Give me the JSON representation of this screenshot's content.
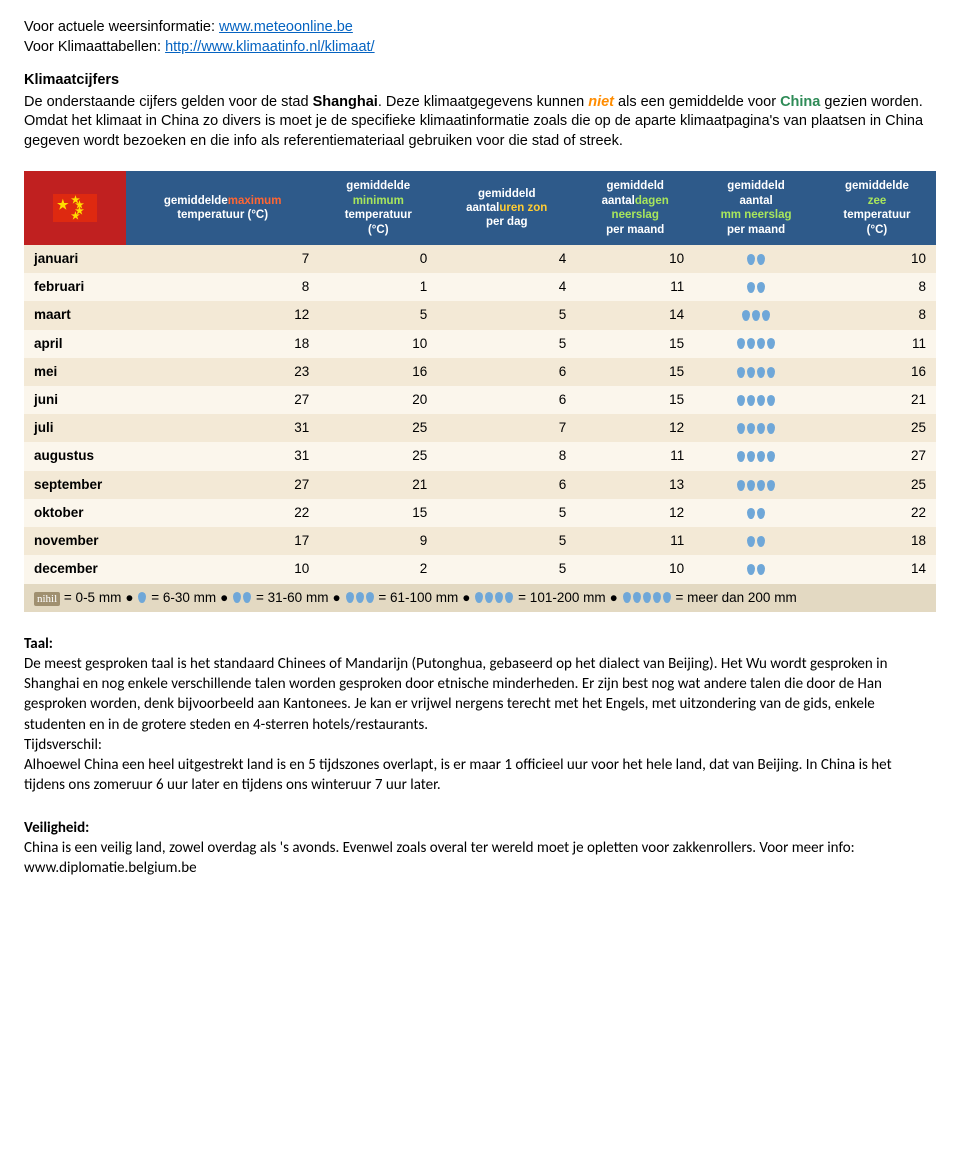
{
  "intro": {
    "weather_line_prefix": "Voor actuele weersinformatie: ",
    "weather_link": "www.meteoonline.be",
    "tables_line_prefix": "Voor Klimaattabellen: ",
    "tables_link": "http://www.klimaatinfo.nl/klimaat/"
  },
  "klimaatcijfers": {
    "title": "Klimaatcijfers",
    "line1_pre": "De onderstaande cijfers gelden voor de stad ",
    "city": "Shanghai",
    "line1_post": ". Deze klimaatgegevens kunnen ",
    "niet": "niet",
    "line2_mid": " als een gemiddelde voor ",
    "china": "China",
    "line2_post": " gezien worden. Omdat het klimaat in China zo divers is moet je de specifieke klimaatinformatie zoals die op de aparte klimaatpagina's van plaatsen in China gegeven wordt bezoeken en die info als referentiemateriaal gebruiken voor die stad of streek."
  },
  "table": {
    "headers": {
      "max_temp_a": "gemiddelde",
      "max_temp_b": "maximum",
      "max_temp_c": "temperatuur (°C)",
      "min_temp_a": "gemiddelde",
      "min_temp_b": "minimum",
      "min_temp_c": "temperatuur",
      "min_temp_d": "(°C)",
      "sun_a": "gemiddeld",
      "sun_b": "aantal",
      "sun_c": "uren zon",
      "sun_d": "per dag",
      "days_a": "gemiddeld",
      "days_b": "aantal",
      "days_c": "dagen",
      "days_d": "neerslag",
      "days_e": "per maand",
      "mm_a": "gemiddeld",
      "mm_b": "aantal",
      "mm_c": "mm neerslag",
      "mm_d": "per maand",
      "sea_a": "gemiddelde",
      "sea_b": "zee",
      "sea_c": "temperatuur",
      "sea_d": "(°C)"
    },
    "rows": [
      {
        "month": "januari",
        "max": "7",
        "min": "0",
        "sun": "4",
        "days": "10",
        "drops": 2,
        "sea": "10"
      },
      {
        "month": "februari",
        "max": "8",
        "min": "1",
        "sun": "4",
        "days": "11",
        "drops": 2,
        "sea": "8"
      },
      {
        "month": "maart",
        "max": "12",
        "min": "5",
        "sun": "5",
        "days": "14",
        "drops": 3,
        "sea": "8"
      },
      {
        "month": "april",
        "max": "18",
        "min": "10",
        "sun": "5",
        "days": "15",
        "drops": 4,
        "sea": "11"
      },
      {
        "month": "mei",
        "max": "23",
        "min": "16",
        "sun": "6",
        "days": "15",
        "drops": 4,
        "sea": "16"
      },
      {
        "month": "juni",
        "max": "27",
        "min": "20",
        "sun": "6",
        "days": "15",
        "drops": 4,
        "sea": "21"
      },
      {
        "month": "juli",
        "max": "31",
        "min": "25",
        "sun": "7",
        "days": "12",
        "drops": 4,
        "sea": "25"
      },
      {
        "month": "augustus",
        "max": "31",
        "min": "25",
        "sun": "8",
        "days": "11",
        "drops": 4,
        "sea": "27"
      },
      {
        "month": "september",
        "max": "27",
        "min": "21",
        "sun": "6",
        "days": "13",
        "drops": 4,
        "sea": "25"
      },
      {
        "month": "oktober",
        "max": "22",
        "min": "15",
        "sun": "5",
        "days": "12",
        "drops": 2,
        "sea": "22"
      },
      {
        "month": "november",
        "max": "17",
        "min": "9",
        "sun": "5",
        "days": "11",
        "drops": 2,
        "sea": "18"
      },
      {
        "month": "december",
        "max": "10",
        "min": "2",
        "sun": "5",
        "days": "10",
        "drops": 2,
        "sea": "14"
      }
    ],
    "legend": {
      "nihil": "nihil",
      "l0": " = 0-5 mm",
      "l1": " = 6-30 mm",
      "l2": " = 31-60 mm",
      "l3": " = 61-100 mm",
      "l4": " = 101-200 mm",
      "l5": " = meer dan 200 mm"
    }
  },
  "taal": {
    "title": "Taal:",
    "body": "De meest gesproken taal is het standaard Chinees of Mandarijn (Putonghua, gebaseerd op het dialect van Beijing). Het Wu wordt gesproken in Shanghai en nog enkele verschillende talen worden gesproken door etnische minderheden. Er zijn best nog wat andere talen die door de Han gesproken worden, denk bijvoorbeeld aan Kantonees. Je kan er vrijwel nergens terecht met het Engels, met uitzondering van de gids, enkele studenten en in de grotere steden en 4-sterren hotels/restaurants.",
    "tijd_title": "Tijdsverschil:",
    "tijd_body": "Alhoewel China een heel uitgestrekt land is en 5 tijdszones overlapt, is er maar 1 officieel uur voor het hele land, dat van Beijing. In China is het tijdens ons zomeruur 6 uur later en tijdens ons winteruur 7 uur later."
  },
  "veiligheid": {
    "title": "Veiligheid:",
    "body_pre": "China is een veilig land, zowel overdag als 's avonds. Evenwel zoals overal ter wereld moet je opletten voor zakkenrollers. Voor meer info: ",
    "link": "www.diplomatie.belgium.be"
  }
}
